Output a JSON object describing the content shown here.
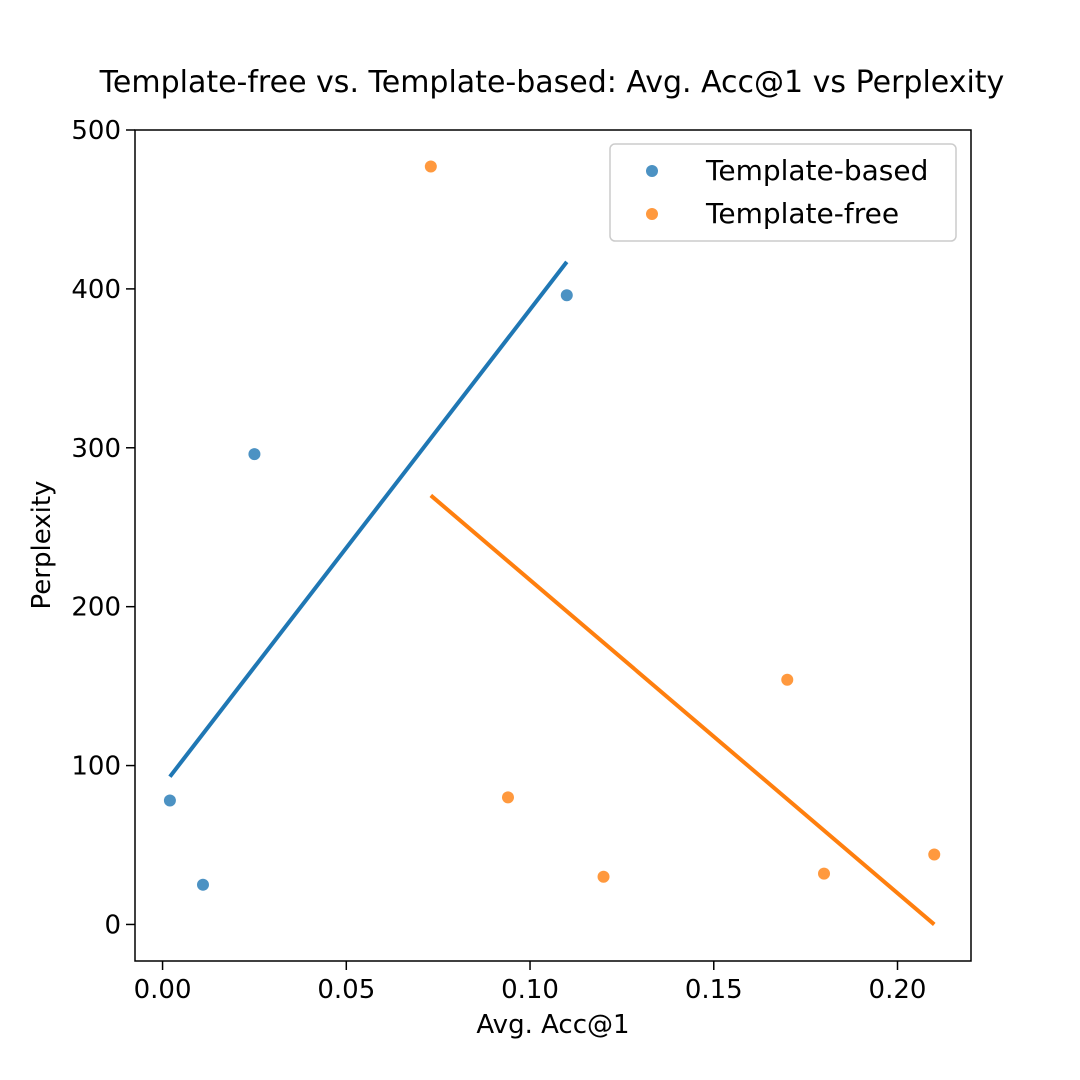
{
  "chart_data": {
    "type": "scatter",
    "title": "Template-free vs. Template-based: Avg. Acc@1 vs Perplexity",
    "xlabel": "Avg. Acc@1",
    "ylabel": "Perplexity",
    "xlim": [
      -0.0075,
      0.22
    ],
    "ylim": [
      -23,
      500
    ],
    "xticks": [
      0.0,
      0.05,
      0.1,
      0.15,
      0.2
    ],
    "xtick_labels": [
      "0.00",
      "0.05",
      "0.10",
      "0.15",
      "0.20"
    ],
    "yticks": [
      0,
      100,
      200,
      300,
      400,
      500
    ],
    "ytick_labels": [
      "0",
      "100",
      "200",
      "300",
      "400",
      "500"
    ],
    "legend_position": "top-right",
    "series": [
      {
        "name": "Template-based",
        "color": "#1f77b4",
        "points": [
          [
            0.002,
            78
          ],
          [
            0.011,
            25
          ],
          [
            0.025,
            296
          ],
          [
            0.11,
            396
          ]
        ],
        "trend": [
          [
            0.002,
            93
          ],
          [
            0.11,
            417
          ]
        ]
      },
      {
        "name": "Template-free",
        "color": "#ff7f0e",
        "points": [
          [
            0.073,
            477
          ],
          [
            0.094,
            80
          ],
          [
            0.12,
            30
          ],
          [
            0.17,
            154
          ],
          [
            0.18,
            32
          ],
          [
            0.21,
            44
          ]
        ],
        "trend": [
          [
            0.073,
            270
          ],
          [
            0.21,
            0
          ]
        ]
      }
    ]
  }
}
